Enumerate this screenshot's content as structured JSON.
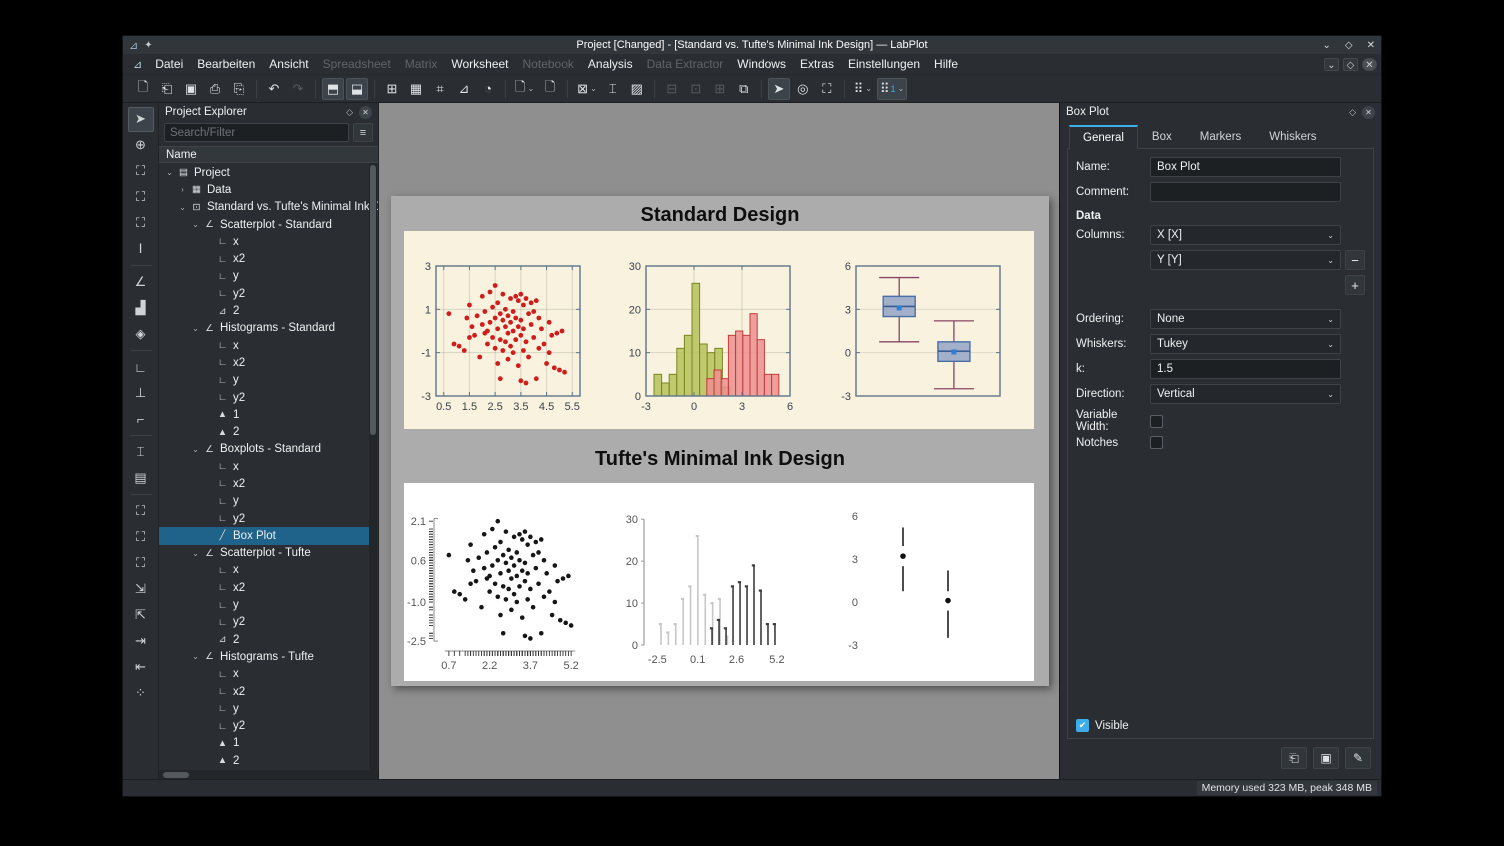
{
  "window": {
    "title": "Project [Changed] - [Standard vs. Tufte's Minimal Ink Design] — LabPlot"
  },
  "titlebar_controls": [
    {
      "name": "shade-button",
      "glyph": "⌄"
    },
    {
      "name": "maximize-button",
      "glyph": "◇"
    },
    {
      "name": "close-button",
      "glyph": "✕"
    }
  ],
  "menu": [
    {
      "label": "Datei",
      "disabled": false
    },
    {
      "label": "Bearbeiten",
      "disabled": false
    },
    {
      "label": "Ansicht",
      "disabled": false
    },
    {
      "label": "Spreadsheet",
      "disabled": true
    },
    {
      "label": "Matrix",
      "disabled": true
    },
    {
      "label": "Worksheet",
      "disabled": false
    },
    {
      "label": "Notebook",
      "disabled": true
    },
    {
      "label": "Analysis",
      "disabled": false
    },
    {
      "label": "Data Extractor",
      "disabled": true
    },
    {
      "label": "Windows",
      "disabled": false
    },
    {
      "label": "Extras",
      "disabled": false
    },
    {
      "label": "Einstellungen",
      "disabled": false
    },
    {
      "label": "Hilfe",
      "disabled": false
    }
  ],
  "toolbar": {
    "groups": [
      {
        "icons": [
          {
            "name": "new-project",
            "glyph": "🗋"
          },
          {
            "name": "open-project",
            "glyph": "⎗"
          },
          {
            "name": "save-project",
            "glyph": "▣"
          },
          {
            "name": "print",
            "glyph": "⎙"
          },
          {
            "name": "print-preview",
            "glyph": "⎘"
          }
        ]
      },
      {
        "icons": [
          {
            "name": "undo",
            "glyph": "↶"
          },
          {
            "name": "redo",
            "glyph": "↷",
            "disabled": true
          }
        ]
      },
      {
        "icons": [
          {
            "name": "toggle-project-explorer",
            "glyph": "⬒",
            "pressed": true
          },
          {
            "name": "toggle-properties",
            "glyph": "⬓",
            "pressed": true
          }
        ]
      },
      {
        "icons": [
          {
            "name": "new-spreadsheet",
            "glyph": "⊞"
          },
          {
            "name": "new-matrix",
            "glyph": "▦"
          },
          {
            "name": "new-workbook",
            "glyph": "⌗"
          },
          {
            "name": "new-notebook",
            "glyph": "⊿"
          },
          {
            "name": "new-datapicker",
            "glyph": "◔"
          }
        ]
      },
      {
        "icons": [
          {
            "name": "new-worksheet",
            "glyph": "🗋",
            "chevron": true
          },
          {
            "name": "import-data",
            "glyph": "🗋"
          }
        ]
      },
      {
        "icons": [
          {
            "name": "zoom-mode",
            "glyph": "⊠",
            "chevron": true
          },
          {
            "name": "fit-selection",
            "glyph": "⌶"
          },
          {
            "name": "export-image",
            "glyph": "▨"
          }
        ]
      },
      {
        "icons": [
          {
            "name": "tile-windows",
            "glyph": "⊟",
            "disabled": true
          },
          {
            "name": "cascade-windows",
            "glyph": "⊡",
            "disabled": true
          },
          {
            "name": "next-window",
            "glyph": "⊞",
            "disabled": true
          },
          {
            "name": "window-layout",
            "glyph": "⧉"
          }
        ]
      },
      {
        "icons": [
          {
            "name": "select-mode",
            "glyph": "➤",
            "pressed": true
          },
          {
            "name": "crosshair-mode",
            "glyph": "◎"
          },
          {
            "name": "zoom-select-region",
            "glyph": "⛶"
          }
        ]
      },
      {
        "icons": [
          {
            "name": "cursor-tool",
            "glyph": "⠿",
            "chevron": true
          },
          {
            "name": "cursor-tool-1",
            "glyph": "⠿",
            "badge": "1",
            "pressed": true,
            "chevron": true
          }
        ]
      }
    ]
  },
  "left_toolbar": [
    {
      "name": "pointer",
      "glyph": "➤",
      "selected": true
    },
    {
      "name": "navigate",
      "glyph": "⊕"
    },
    {
      "name": "zoom-select",
      "glyph": "⛶"
    },
    {
      "name": "zoom-x-select",
      "glyph": "⛶"
    },
    {
      "name": "zoom-y-select",
      "glyph": "⛶"
    },
    {
      "name": "cursor-line",
      "glyph": "Ⅰ",
      "sep_after": true
    },
    {
      "name": "add-xy-curve",
      "glyph": "∠"
    },
    {
      "name": "add-histogram",
      "glyph": "▟"
    },
    {
      "name": "add-boxplot",
      "glyph": "◈",
      "sep_after": true
    },
    {
      "name": "add-axis",
      "glyph": "∟"
    },
    {
      "name": "add-axis-ticks",
      "glyph": "⊥"
    },
    {
      "name": "add-axis-left",
      "glyph": "⌐",
      "sep_after": true
    },
    {
      "name": "add-plot-area",
      "glyph": "⌶"
    },
    {
      "name": "add-image",
      "glyph": "▤",
      "sep_after": true
    },
    {
      "name": "zoom-in",
      "glyph": "⛶"
    },
    {
      "name": "zoom-out",
      "glyph": "⛶"
    },
    {
      "name": "zoom-fit",
      "glyph": "⛶"
    },
    {
      "name": "shift-right",
      "glyph": "⇲"
    },
    {
      "name": "shift-left",
      "glyph": "⇱"
    },
    {
      "name": "shift-up",
      "glyph": "⇥"
    },
    {
      "name": "shift-down",
      "glyph": "⇤"
    },
    {
      "name": "more-tools",
      "glyph": "⁘"
    }
  ],
  "explorer": {
    "title": "Project Explorer",
    "search_placeholder": "Search/Filter",
    "column_header": "Name",
    "tree": [
      {
        "label": "Project",
        "icon": "folder",
        "depth": 0,
        "chev": "⌄"
      },
      {
        "label": "Data",
        "icon": "table",
        "depth": 1,
        "chev": "›"
      },
      {
        "label": "Standard vs. Tufte's Minimal Ink Design",
        "icon": "worksheet",
        "depth": 1,
        "chev": "⌄"
      },
      {
        "label": "Scatterplot - Standard",
        "icon": "plot",
        "depth": 2,
        "chev": "⌄"
      },
      {
        "label": "x",
        "icon": "axis",
        "depth": 3
      },
      {
        "label": "x2",
        "icon": "axis",
        "depth": 3
      },
      {
        "label": "y",
        "icon": "axis",
        "depth": 3
      },
      {
        "label": "y2",
        "icon": "axis",
        "depth": 3
      },
      {
        "label": "2",
        "icon": "curve",
        "depth": 3
      },
      {
        "label": "Histograms - Standard",
        "icon": "plot",
        "depth": 2,
        "chev": "⌄"
      },
      {
        "label": "x",
        "icon": "axis",
        "depth": 3
      },
      {
        "label": "x2",
        "icon": "axis",
        "depth": 3
      },
      {
        "label": "y",
        "icon": "axis",
        "depth": 3
      },
      {
        "label": "y2",
        "icon": "axis",
        "depth": 3
      },
      {
        "label": "1",
        "icon": "hist",
        "depth": 3
      },
      {
        "label": "2",
        "icon": "hist",
        "depth": 3
      },
      {
        "label": "Boxplots - Standard",
        "icon": "plot",
        "depth": 2,
        "chev": "⌄"
      },
      {
        "label": "x",
        "icon": "axis",
        "depth": 3
      },
      {
        "label": "x2",
        "icon": "axis",
        "depth": 3
      },
      {
        "label": "y",
        "icon": "axis",
        "depth": 3
      },
      {
        "label": "y2",
        "icon": "axis",
        "depth": 3
      },
      {
        "label": "Box Plot",
        "icon": "xy",
        "depth": 3,
        "selected": true
      },
      {
        "label": "Scatterplot - Tufte",
        "icon": "plot",
        "depth": 2,
        "chev": "⌄"
      },
      {
        "label": "x",
        "icon": "axis",
        "depth": 3
      },
      {
        "label": "x2",
        "icon": "axis",
        "depth": 3
      },
      {
        "label": "y",
        "icon": "axis",
        "depth": 3
      },
      {
        "label": "y2",
        "icon": "axis",
        "depth": 3
      },
      {
        "label": "2",
        "icon": "curve",
        "depth": 3
      },
      {
        "label": "Histograms - Tufte",
        "icon": "plot",
        "depth": 2,
        "chev": "⌄"
      },
      {
        "label": "x",
        "icon": "axis",
        "depth": 3
      },
      {
        "label": "x2",
        "icon": "axis",
        "depth": 3
      },
      {
        "label": "y",
        "icon": "axis",
        "depth": 3
      },
      {
        "label": "y2",
        "icon": "axis",
        "depth": 3
      },
      {
        "label": "1",
        "icon": "hist",
        "depth": 3
      },
      {
        "label": "2",
        "icon": "hist",
        "depth": 3
      }
    ]
  },
  "worksheet": {
    "standard_title": "Standard Design",
    "tufte_title": "Tufte's Minimal Ink Design"
  },
  "properties": {
    "title": "Box Plot",
    "tabs": [
      "General",
      "Box",
      "Markers",
      "Whiskers"
    ],
    "active_tab": "General",
    "name_label": "Name:",
    "name_value": "Box Plot",
    "comment_label": "Comment:",
    "comment_value": "",
    "data_section": "Data",
    "columns_label": "Columns:",
    "column1": "X [X]",
    "column2": "Y [Y]",
    "remove_label": "−",
    "add_label": "+",
    "ordering_label": "Ordering:",
    "ordering_value": "None",
    "whiskers_label": "Whiskers:",
    "whiskers_value": "Tukey",
    "k_label": "k:",
    "k_value": "1.5",
    "direction_label": "Direction:",
    "direction_value": "Vertical",
    "variable_width_label": "Variable Width:",
    "variable_width_checked": false,
    "notches_label": "Notches",
    "notches_checked": false,
    "visible_label": "Visible",
    "visible_checked": true
  },
  "statusbar": {
    "memory": "Memory used 323 MB, peak 348 MB"
  },
  "chart_data": {
    "scatter": {
      "type": "scatter",
      "points": [
        [
          0.7,
          0.8
        ],
        [
          0.9,
          -0.6
        ],
        [
          1.1,
          -0.7
        ],
        [
          1.3,
          -0.9
        ],
        [
          1.4,
          0.6
        ],
        [
          1.5,
          -0.3
        ],
        [
          1.5,
          1.2
        ],
        [
          1.6,
          0.2
        ],
        [
          1.7,
          -0.2
        ],
        [
          1.8,
          0.7
        ],
        [
          1.9,
          -1.2
        ],
        [
          2.0,
          1.6
        ],
        [
          2.0,
          0.3
        ],
        [
          2.1,
          -0.1
        ],
        [
          2.1,
          0.9
        ],
        [
          2.2,
          0.0
        ],
        [
          2.2,
          -0.6
        ],
        [
          2.3,
          1.8
        ],
        [
          2.3,
          0.4
        ],
        [
          2.4,
          -0.3
        ],
        [
          2.4,
          1.1
        ],
        [
          2.5,
          2.1
        ],
        [
          2.5,
          0.6
        ],
        [
          2.5,
          -0.8
        ],
        [
          2.6,
          1.3
        ],
        [
          2.6,
          0.1
        ],
        [
          2.6,
          -1.5
        ],
        [
          2.7,
          0.8
        ],
        [
          2.7,
          -0.4
        ],
        [
          2.7,
          -2.2
        ],
        [
          2.8,
          1.7
        ],
        [
          2.8,
          0.5
        ],
        [
          2.8,
          -0.9
        ],
        [
          2.9,
          1.0
        ],
        [
          2.9,
          0.2
        ],
        [
          2.9,
          -0.5
        ],
        [
          3.0,
          0.7
        ],
        [
          3.0,
          -0.1
        ],
        [
          3.0,
          -1.3
        ],
        [
          3.1,
          1.5
        ],
        [
          3.1,
          0.4
        ],
        [
          3.1,
          -0.7
        ],
        [
          3.2,
          0.9
        ],
        [
          3.2,
          0.0
        ],
        [
          3.2,
          -1.0
        ],
        [
          3.3,
          1.6
        ],
        [
          3.3,
          0.6
        ],
        [
          3.3,
          -0.4
        ],
        [
          3.4,
          1.4
        ],
        [
          3.4,
          0.2
        ],
        [
          3.4,
          -1.6
        ],
        [
          3.5,
          1.7
        ],
        [
          3.5,
          0.5
        ],
        [
          3.5,
          -0.2
        ],
        [
          3.5,
          -2.3
        ],
        [
          3.6,
          1.2
        ],
        [
          3.6,
          0.1
        ],
        [
          3.6,
          -0.9
        ],
        [
          3.7,
          1.5
        ],
        [
          3.7,
          -0.5
        ],
        [
          3.7,
          -2.4
        ],
        [
          3.8,
          0.8
        ],
        [
          3.8,
          -1.2
        ],
        [
          3.9,
          1.3
        ],
        [
          3.9,
          0.3
        ],
        [
          4.0,
          0.9
        ],
        [
          4.0,
          -0.3
        ],
        [
          4.1,
          1.4
        ],
        [
          4.1,
          -2.2
        ],
        [
          4.2,
          0.6
        ],
        [
          4.2,
          -0.8
        ],
        [
          4.3,
          0.1
        ],
        [
          4.4,
          -0.6
        ],
        [
          4.5,
          -1.5
        ],
        [
          4.6,
          0.4
        ],
        [
          4.6,
          -1.0
        ],
        [
          4.7,
          -0.2
        ],
        [
          4.8,
          -1.7
        ],
        [
          4.9,
          -0.1
        ],
        [
          5.0,
          -1.8
        ],
        [
          5.1,
          0.0
        ],
        [
          5.2,
          -1.9
        ]
      ],
      "standard": {
        "x_ticks": [
          0.5,
          1.5,
          2.5,
          3.5,
          4.5,
          5.5
        ],
        "x_labels": [
          "0.5",
          "1.5",
          "2.5",
          "3.5",
          "4.5",
          "5.5"
        ],
        "y_ticks": [
          -3,
          -1,
          1,
          3
        ],
        "y_labels": [
          "-3",
          "-1",
          "1",
          "3"
        ],
        "xlim": [
          0.2,
          5.8
        ],
        "ylim": [
          -3,
          3
        ],
        "point_color": "#d11c1c"
      },
      "tufte": {
        "x_ticks": [
          0.7,
          2.2,
          3.7,
          5.2
        ],
        "x_labels": [
          "0.7",
          "2.2",
          "3.7",
          "5.2"
        ],
        "y_ticks": [
          2.1,
          0.6,
          -1.0,
          -2.5
        ],
        "y_labels": [
          "2.1",
          "0.6",
          "-1.0",
          "-2.5"
        ],
        "xlim": [
          0.3,
          5.6
        ],
        "ylim": [
          -2.65,
          2.3
        ],
        "point_color": "#161616"
      }
    },
    "histogram": {
      "type": "bar",
      "series": [
        {
          "name": "1",
          "bin_start": -2.5,
          "bin_width": 0.475,
          "values": [
            5,
            3,
            5,
            11,
            14,
            26,
            12,
            10,
            11,
            2
          ]
        },
        {
          "name": "2",
          "bin_start": 0.8,
          "bin_width": 0.45,
          "values": [
            4,
            6,
            4,
            14,
            15,
            14,
            19,
            13,
            5,
            5
          ]
        }
      ],
      "standard": {
        "x_ticks": [
          -3,
          0,
          3,
          6
        ],
        "x_labels": [
          "-3",
          "0",
          "3",
          "6"
        ],
        "y_ticks": [
          0,
          10,
          20,
          30
        ],
        "y_labels": [
          "0",
          "10",
          "20",
          "30"
        ],
        "xlim": [
          -3,
          6
        ],
        "ylim": [
          0,
          30
        ],
        "colors": [
          {
            "fill": "#b7c25a",
            "stroke": "#78871f"
          },
          {
            "fill": "#ec9090",
            "stroke": "#c43b3b"
          }
        ]
      },
      "tufte": {
        "x_ticks": [
          -2.5,
          0.1,
          2.6,
          5.2
        ],
        "x_labels": [
          "-2.5",
          "0.1",
          "2.6",
          "5.2"
        ],
        "y_ticks": [
          0,
          10,
          20,
          30
        ],
        "y_labels": [
          "0",
          "10",
          "20",
          "30"
        ],
        "xlim": [
          -3.1,
          6.3
        ],
        "ylim": [
          0,
          31
        ],
        "colors": [
          "#c7c7c7",
          "#3d3d3d"
        ]
      }
    },
    "boxplot": {
      "type": "box",
      "boxes": [
        {
          "whisker_top": 5.2,
          "q3": 3.9,
          "median": 3.2,
          "mean": 3.1,
          "q1": 2.5,
          "whisker_bottom": 0.75
        },
        {
          "whisker_top": 2.2,
          "q3": 0.75,
          "median": 0.1,
          "mean": 0.05,
          "q1": -0.6,
          "whisker_bottom": -2.5
        }
      ],
      "standard": {
        "y_ticks": [
          -3,
          0,
          3,
          6
        ],
        "y_labels": [
          "-3",
          "0",
          "3",
          "6"
        ],
        "ylim": [
          -3,
          6
        ],
        "box_fill": "#93a5c6",
        "box_stroke": "#4a6da8",
        "median_color": "#3b5c94",
        "whisker_color": "#8a4464",
        "mean_color": "#2e7ed5"
      },
      "tufte": {
        "y_ticks": [
          6,
          3,
          0,
          -3
        ],
        "y_labels": [
          "6",
          "3",
          "0",
          "-3"
        ],
        "ylim": [
          -3,
          6
        ],
        "color": "#111111"
      }
    }
  }
}
